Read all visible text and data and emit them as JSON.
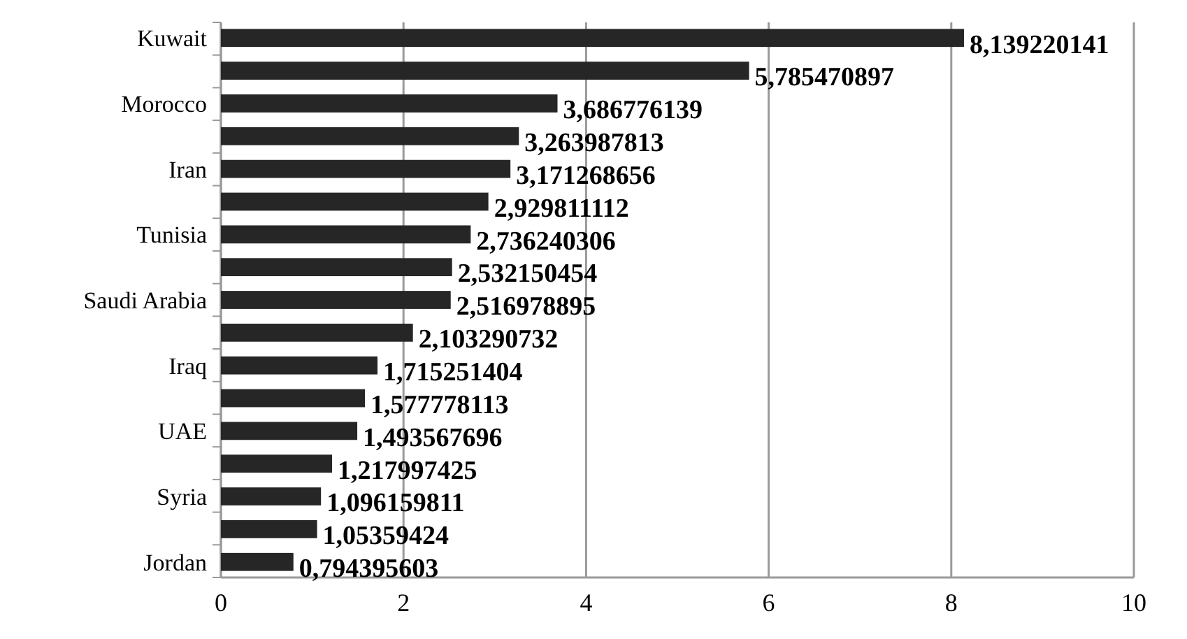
{
  "chart_data": {
    "type": "bar",
    "orientation": "horizontal",
    "categories": [
      "Kuwait",
      null,
      "Morocco",
      null,
      "Iran",
      null,
      "Tunisia",
      null,
      "Saudi Arabia",
      null,
      "Iraq",
      null,
      "UAE",
      null,
      "Syria",
      null,
      "Jordan"
    ],
    "values": [
      8.139220141,
      5.785470897,
      3.686776139,
      3.263987813,
      3.171268656,
      2.929811112,
      2.736240306,
      2.532150454,
      2.516978895,
      2.103290732,
      1.715251404,
      1.577778113,
      1.493567696,
      1.217997425,
      1.096159811,
      1.05359424,
      0.794395603
    ],
    "value_labels": [
      "8,139220141",
      "5,785470897",
      "3,686776139",
      "3,263987813",
      "3,171268656",
      "2,929811112",
      "2,736240306",
      "2,532150454",
      "2,516978895",
      "2,103290732",
      "1,715251404",
      "1,577778113",
      "1,493567696",
      "1,217997425",
      "1,096159811",
      "1,05359424",
      "0,794395603"
    ],
    "color": "#262626",
    "xlim": [
      0,
      10
    ],
    "xticks": [
      0,
      2,
      4,
      6,
      8,
      10
    ],
    "grid": "x"
  }
}
